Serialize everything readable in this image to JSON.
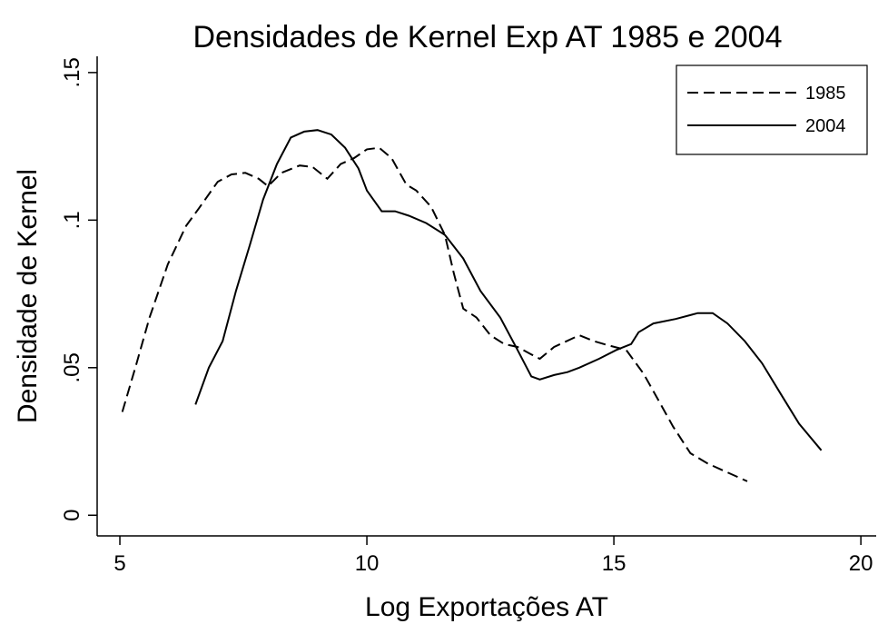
{
  "chart_data": {
    "type": "line",
    "title": "Densidades de Kernel Exp AT 1985 e 2004",
    "xlabel": "Log Exportações AT",
    "ylabel": "Densidade de Kernel",
    "xlim": [
      4.54,
      20.31
    ],
    "ylim": [
      -0.007,
      0.1555
    ],
    "xticks": [
      5,
      10,
      15,
      20
    ],
    "yticks": [
      0,
      {
        "value": 0.05,
        "label": ".05"
      },
      {
        "value": 0.1,
        "label": ".1"
      },
      {
        "value": 0.15,
        "label": ".15"
      }
    ],
    "grid": false,
    "legend": "top-right",
    "series": [
      {
        "name": "1985",
        "color": "#000000",
        "style": "dashed",
        "x": [
          5.05,
          5.33,
          5.6,
          5.97,
          6.34,
          6.6,
          6.98,
          7.26,
          7.54,
          7.81,
          8.0,
          8.27,
          8.64,
          8.9,
          9.2,
          9.47,
          9.74,
          10.0,
          10.25,
          10.5,
          10.8,
          11.0,
          11.3,
          11.58,
          11.76,
          11.95,
          12.22,
          12.5,
          12.78,
          13.05,
          13.33,
          13.5,
          13.79,
          14.3,
          14.6,
          14.9,
          15.25,
          15.6,
          15.9,
          16.2,
          16.55,
          16.9,
          17.3,
          17.7
        ],
        "values": [
          0.035,
          0.051,
          0.067,
          0.085,
          0.098,
          0.104,
          0.113,
          0.1155,
          0.116,
          0.114,
          0.1115,
          0.116,
          0.1185,
          0.118,
          0.114,
          0.119,
          0.121,
          0.124,
          0.1245,
          0.121,
          0.112,
          0.11,
          0.1045,
          0.095,
          0.082,
          0.07,
          0.067,
          0.061,
          0.058,
          0.057,
          0.0545,
          0.053,
          0.057,
          0.061,
          0.059,
          0.0575,
          0.056,
          0.048,
          0.039,
          0.03,
          0.021,
          0.0175,
          0.0145,
          0.0115
        ]
      },
      {
        "name": "2004",
        "color": "#000000",
        "style": "solid",
        "x": [
          6.53,
          6.8,
          7.08,
          7.35,
          7.63,
          7.9,
          8.18,
          8.46,
          8.73,
          9.0,
          9.28,
          9.56,
          9.83,
          10.0,
          10.3,
          10.57,
          10.85,
          11.2,
          11.58,
          11.95,
          12.3,
          12.7,
          13.05,
          13.33,
          13.5,
          13.79,
          14.06,
          14.3,
          14.7,
          15.05,
          15.35,
          15.5,
          15.8,
          16.25,
          16.7,
          17.0,
          17.3,
          17.65,
          18.0,
          18.4,
          18.75,
          19.2
        ],
        "values": [
          0.0375,
          0.05,
          0.059,
          0.076,
          0.0915,
          0.107,
          0.119,
          0.128,
          0.13,
          0.1305,
          0.129,
          0.1245,
          0.1175,
          0.11,
          0.103,
          0.103,
          0.1015,
          0.099,
          0.095,
          0.087,
          0.076,
          0.067,
          0.056,
          0.047,
          0.046,
          0.0475,
          0.0485,
          0.05,
          0.053,
          0.056,
          0.058,
          0.062,
          0.065,
          0.0665,
          0.0685,
          0.0685,
          0.065,
          0.059,
          0.0515,
          0.0405,
          0.031,
          0.022
        ]
      }
    ]
  }
}
